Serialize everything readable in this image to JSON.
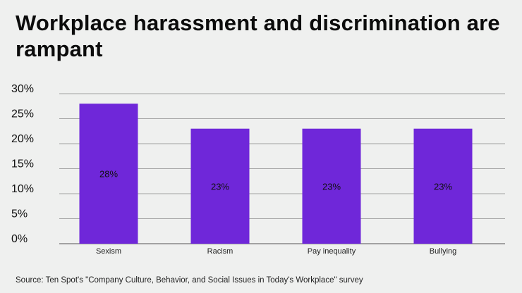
{
  "title": "Workplace harassment and discrimination are rampant",
  "source": "Source: Ten Spot's \"Company Culture, Behavior, and Social Issues in Today's Workplace\" survey",
  "colors": {
    "bar": "#6f27d9",
    "grid": "#888888",
    "axis": "#555555",
    "background": "#eff0ef"
  },
  "chart_data": {
    "type": "bar",
    "title": "Workplace harassment and discrimination are rampant",
    "categories": [
      "Sexism",
      "Racism",
      "Pay inequality",
      "Bullying"
    ],
    "values": [
      28,
      23,
      23,
      23
    ],
    "data_labels": [
      "28%",
      "23%",
      "23%",
      "23%"
    ],
    "ylim": [
      0,
      30
    ],
    "yticks": [
      0,
      5,
      10,
      15,
      20,
      25,
      30
    ],
    "ytick_labels": [
      "0%",
      "5%",
      "10%",
      "15%",
      "20%",
      "25%",
      "30%"
    ],
    "xlabel": "",
    "ylabel": "",
    "grid": true,
    "legend": "none"
  }
}
